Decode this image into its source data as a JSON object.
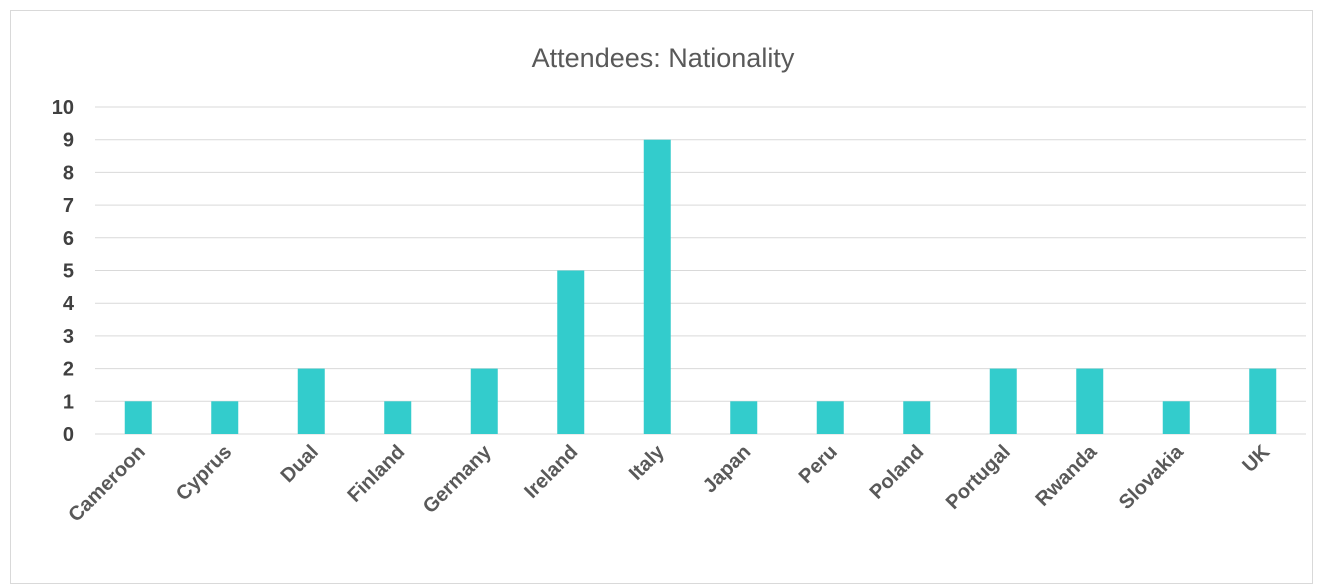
{
  "chart_data": {
    "type": "bar",
    "title": "Attendees: Nationality",
    "xlabel": "",
    "ylabel": "",
    "ylim": [
      0,
      10
    ],
    "yticks": [
      0,
      1,
      2,
      3,
      4,
      5,
      6,
      7,
      8,
      9,
      10
    ],
    "grid": true,
    "legend": "none",
    "bar_color": "#33CCCC",
    "categories": [
      "Cameroon",
      "Cyprus",
      "Dual",
      "Finland",
      "Germany",
      "Ireland",
      "Italy",
      "Japan",
      "Peru",
      "Poland",
      "Portugal",
      "Rwanda",
      "Slovakia",
      "UK"
    ],
    "values": [
      1,
      1,
      2,
      1,
      2,
      5,
      9,
      1,
      1,
      1,
      2,
      2,
      1,
      2
    ]
  }
}
